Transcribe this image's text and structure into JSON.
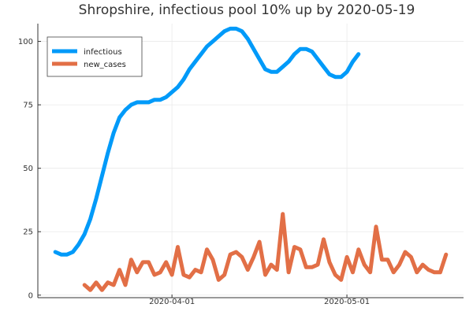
{
  "chart_data": {
    "type": "line",
    "title": "Shropshire, infectious pool 10% up by 2020-05-19",
    "xlabel": "",
    "ylabel": "",
    "x_start": "2020-03-12",
    "x_end": "2020-05-19",
    "xlim": [
      "2020-03-09",
      "2020-05-21"
    ],
    "ylim": [
      -1,
      107
    ],
    "yticks": [
      0,
      25,
      50,
      75,
      100
    ],
    "xticks": [
      {
        "date": "2020-04-01",
        "label": "2020-04-01"
      },
      {
        "date": "2020-05-01",
        "label": "2020-05-01"
      }
    ],
    "grid": true,
    "legend_position": "top-left",
    "series": [
      {
        "name": "infectious",
        "color": "#009af9",
        "x_start": "2020-03-12",
        "values": [
          17,
          16,
          16,
          17,
          20,
          24,
          30,
          38,
          47,
          56,
          64,
          70,
          73,
          75,
          76,
          76,
          76,
          77,
          77,
          78,
          80,
          82,
          85,
          89,
          92,
          95,
          98,
          100,
          102,
          104,
          105,
          105,
          104,
          101,
          97,
          93,
          89,
          88,
          88,
          90,
          92,
          95,
          97,
          97,
          96,
          93,
          90,
          87,
          86,
          86,
          88,
          92,
          95
        ]
      },
      {
        "name": "new_cases",
        "color": "#e26f46",
        "x_start": "2020-03-17",
        "values": [
          4,
          2,
          5,
          2,
          5,
          4,
          10,
          4,
          14,
          9,
          13,
          13,
          8,
          9,
          13,
          8,
          19,
          8,
          7,
          10,
          9,
          18,
          14,
          6,
          8,
          16,
          17,
          15,
          10,
          15,
          21,
          8,
          12,
          10,
          32,
          9,
          19,
          18,
          11,
          11,
          12,
          22,
          13,
          8,
          6,
          15,
          9,
          18,
          12,
          9,
          27,
          14,
          14,
          9,
          12,
          17,
          15,
          9,
          12,
          10,
          9,
          9,
          16
        ]
      }
    ]
  }
}
